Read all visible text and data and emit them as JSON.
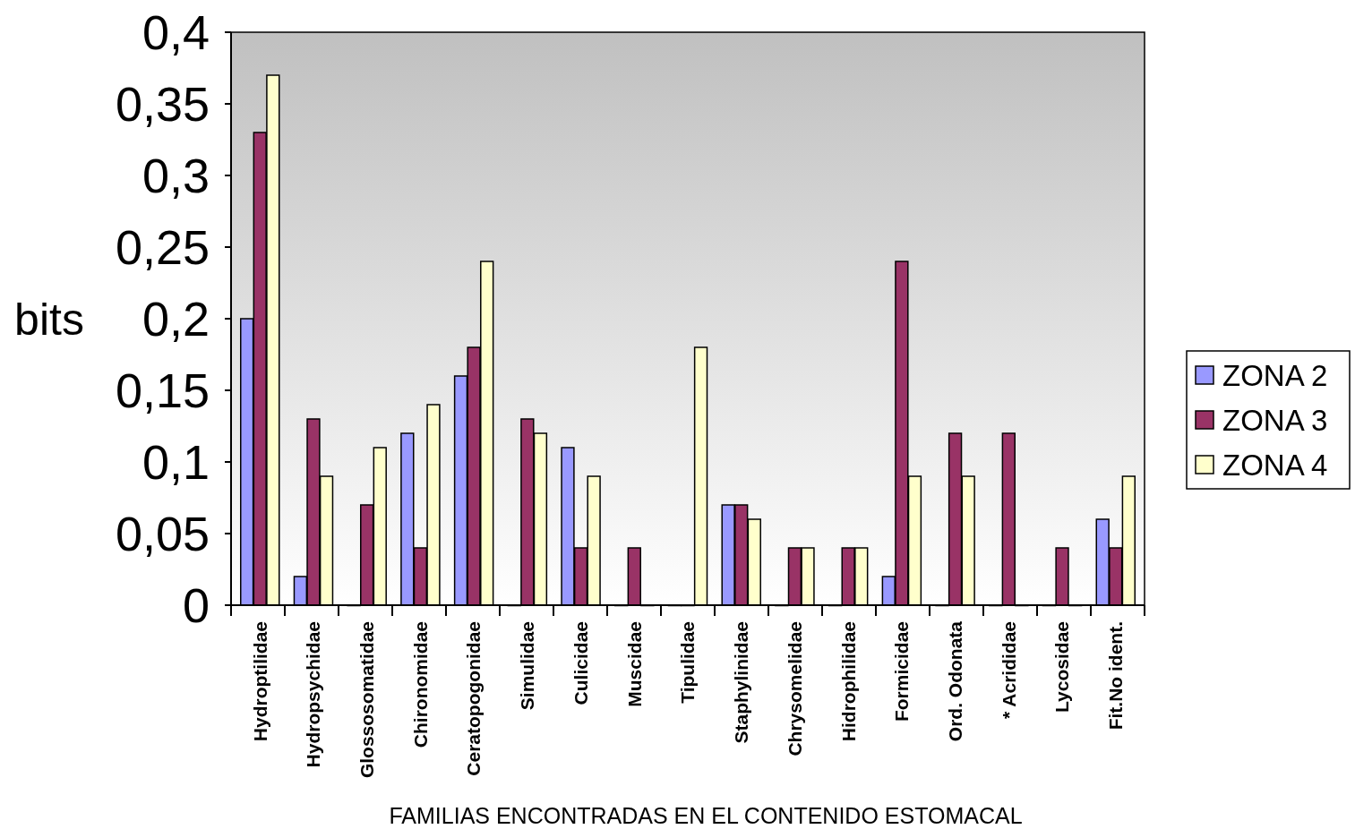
{
  "chart_data": {
    "type": "bar",
    "xlabel": "FAMILIAS ENCONTRADAS EN EL CONTENIDO ESTOMACAL",
    "ylabel": "bits",
    "categories": [
      "Hydroptilidae",
      "Hydropsychidae",
      "Glossosomatidae",
      "Chironomidae",
      "Ceratopogonidae",
      "Simulidae",
      "Culicidae",
      "Muscidae",
      "Tipulidae",
      "Staphylinidae",
      "Chrysomelidae",
      "Hidrophilidae",
      "Formicidae",
      "Ord. Odonata",
      "* Acrididae",
      "Lycosidae",
      "Fit.No ident."
    ],
    "series": [
      {
        "name": "ZONA 2",
        "color": "#9999ff",
        "values": [
          0.2,
          0.02,
          0,
          0.12,
          0.16,
          0,
          0.11,
          0,
          0,
          0.07,
          0,
          0,
          0.02,
          0,
          0,
          0,
          0.06
        ]
      },
      {
        "name": "ZONA 3",
        "color": "#993366",
        "values": [
          0.33,
          0.13,
          0.07,
          0.04,
          0.18,
          0.13,
          0.04,
          0.04,
          0,
          0.07,
          0.04,
          0.04,
          0.24,
          0.12,
          0.12,
          0.04,
          0.04
        ]
      },
      {
        "name": "ZONA 4",
        "color": "#ffffcc",
        "values": [
          0.37,
          0.09,
          0.11,
          0.14,
          0.24,
          0.12,
          0.09,
          0,
          0.18,
          0.06,
          0.04,
          0.04,
          0.09,
          0.09,
          0,
          0,
          0.09
        ]
      }
    ],
    "ylim": [
      0,
      0.4
    ],
    "yticks": [
      0,
      {
        "value": 0.05,
        "label": "0,05"
      },
      {
        "value": 0.1,
        "label": "0,1"
      },
      {
        "value": 0.15,
        "label": "0,15"
      },
      {
        "value": 0.2,
        "label": "0,2"
      },
      {
        "value": 0.25,
        "label": "0,25"
      },
      {
        "value": 0.3,
        "label": "0,3"
      },
      {
        "value": 0.35,
        "label": "0,35"
      },
      {
        "value": 0.4,
        "label": "0,4"
      }
    ],
    "legend": "right"
  }
}
